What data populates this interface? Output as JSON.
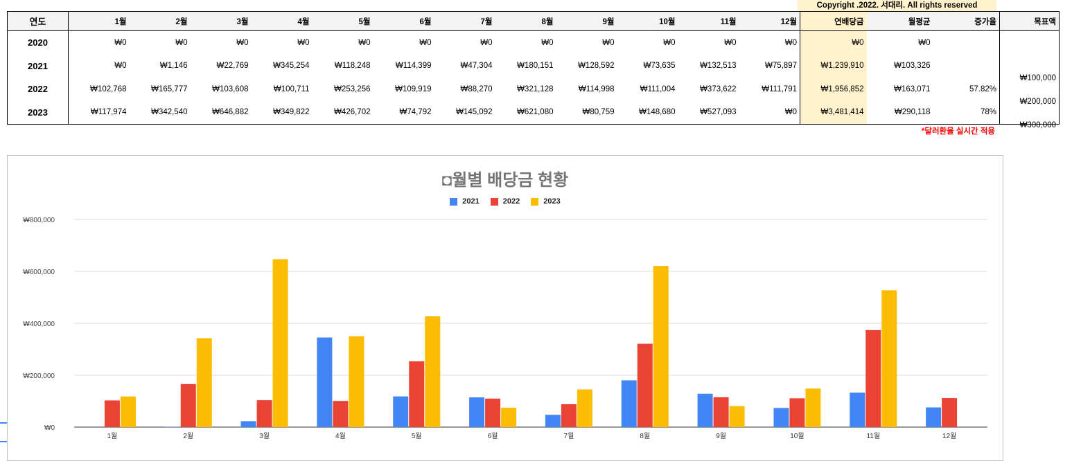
{
  "copyright": "Copyright .2022. 서대리. All rights reserved",
  "table": {
    "headers": [
      "연도",
      "1월",
      "2월",
      "3월",
      "4월",
      "5월",
      "6월",
      "7월",
      "8월",
      "9월",
      "10월",
      "11월",
      "12월",
      "연배당금",
      "월평균",
      "증가율",
      "목표액"
    ],
    "rows": [
      {
        "year": "2020",
        "months": [
          "₩0",
          "₩0",
          "₩0",
          "₩0",
          "₩0",
          "₩0",
          "₩0",
          "₩0",
          "₩0",
          "₩0",
          "₩0",
          "₩0"
        ],
        "annual": "₩0",
        "avg": "₩0",
        "growth": ""
      },
      {
        "year": "2021",
        "months": [
          "₩0",
          "₩1,146",
          "₩22,769",
          "₩345,254",
          "₩118,248",
          "₩114,399",
          "₩47,304",
          "₩180,151",
          "₩128,592",
          "₩73,635",
          "₩132,513",
          "₩75,897"
        ],
        "annual": "₩1,239,910",
        "avg": "₩103,326",
        "growth": ""
      },
      {
        "year": "2022",
        "months": [
          "₩102,768",
          "₩165,777",
          "₩103,608",
          "₩100,711",
          "₩253,256",
          "₩109,919",
          "₩88,270",
          "₩321,128",
          "₩114,998",
          "₩111,004",
          "₩373,622",
          "₩111,791"
        ],
        "annual": "₩1,956,852",
        "avg": "₩163,071",
        "growth": "57.82%"
      },
      {
        "year": "2023",
        "months": [
          "₩117,974",
          "₩342,540",
          "₩646,882",
          "₩349,822",
          "₩426,702",
          "₩74,792",
          "₩145,092",
          "₩621,080",
          "₩80,759",
          "₩148,680",
          "₩527,093",
          "₩0"
        ],
        "annual": "₩3,481,414",
        "avg": "₩290,118",
        "growth": "78%"
      }
    ],
    "goals": [
      "₩100,000",
      "₩200,000",
      "₩300,000"
    ]
  },
  "fx_note": "*달러환율 실시간 적용",
  "colors": {
    "s2021": "#4285f4",
    "s2022": "#ea4335",
    "s2023": "#fbbc04"
  },
  "chart_data": {
    "type": "bar",
    "title": "◘월별 배당금 현황",
    "categories": [
      "1월",
      "2월",
      "3월",
      "4월",
      "5월",
      "6월",
      "7월",
      "8월",
      "9월",
      "10월",
      "11월",
      "12월"
    ],
    "series": [
      {
        "name": "2021",
        "values": [
          0,
          1146,
          22769,
          345254,
          118248,
          114399,
          47304,
          180151,
          128592,
          73635,
          132513,
          75897
        ]
      },
      {
        "name": "2022",
        "values": [
          102768,
          165777,
          103608,
          100711,
          253256,
          109919,
          88270,
          321128,
          114998,
          111004,
          373622,
          111791
        ]
      },
      {
        "name": "2023",
        "values": [
          117974,
          342540,
          646882,
          349822,
          426702,
          74792,
          145092,
          621080,
          80759,
          148680,
          527093,
          0
        ]
      }
    ],
    "ylim": [
      0,
      800000
    ],
    "yticks": [
      "₩0",
      "₩200,000",
      "₩400,000",
      "₩600,000",
      "₩800,000"
    ],
    "ytick_values": [
      0,
      200000,
      400000,
      600000,
      800000
    ],
    "grid": true,
    "legend_position": "top"
  }
}
